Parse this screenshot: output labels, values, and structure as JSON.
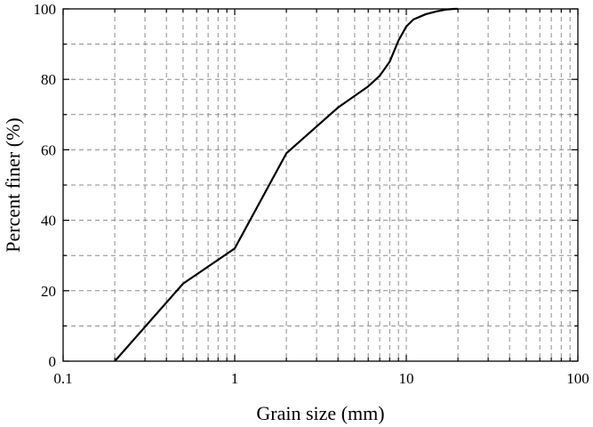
{
  "chart_data": {
    "type": "line",
    "title": "",
    "xlabel": "Grain size (mm)",
    "ylabel": "Percent finer (%)",
    "xscale": "log",
    "xlim": [
      0.1,
      100
    ],
    "ylim": [
      0,
      100
    ],
    "xticks": [
      0.1,
      1,
      10,
      100
    ],
    "xtick_labels": [
      "0.1",
      "1",
      "10",
      "100"
    ],
    "yticks": [
      0,
      20,
      40,
      60,
      80,
      100
    ],
    "ytick_labels": [
      "0",
      "20",
      "40",
      "60",
      "80",
      "100"
    ],
    "grid": true,
    "legend": "none",
    "series": [
      {
        "x": [
          0.2,
          0.5,
          1,
          2,
          4,
          6,
          7,
          8,
          9,
          10,
          11,
          13,
          15,
          17,
          19,
          20
        ],
        "y": [
          0,
          22,
          32,
          59,
          72,
          78,
          81,
          85,
          91,
          95,
          97,
          98.5,
          99.3,
          99.8,
          100,
          100
        ]
      }
    ]
  }
}
